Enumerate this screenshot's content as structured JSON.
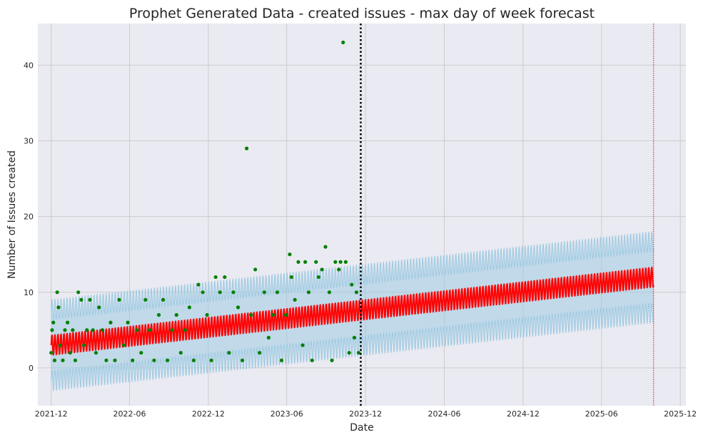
{
  "chart_data": {
    "type": "scatter",
    "title": "Prophet Generated Data - created issues - max day of week forecast",
    "xlabel": "Date",
    "ylabel": "Number of Issues created",
    "xlim": [
      "2021-10-31",
      "2025-12-14"
    ],
    "ylim": [
      -5,
      45.5
    ],
    "x_ticks": [
      "2021-12",
      "2022-06",
      "2022-12",
      "2023-06",
      "2023-12",
      "2024-06",
      "2024-12",
      "2025-06",
      "2025-12"
    ],
    "y_ticks": [
      0,
      10,
      20,
      30,
      40
    ],
    "grid": true,
    "colors": {
      "observed": "#008000",
      "forecast": "#ff0000",
      "interval": "#9ecae1",
      "cutoff": "#000000",
      "horizon_end": "#ff0000",
      "plot_background": "#eaeaf2",
      "grid": "#cccccc"
    },
    "forecast_start": "2021-12-01",
    "forecast_end": "2025-09-30",
    "cutoff_date": "2023-11-20",
    "horizon_end_date": "2025-09-30",
    "trend": {
      "start": {
        "x": "2021-12-01",
        "y": 3.0
      },
      "end": {
        "x": "2025-09-30",
        "y": 12.0
      }
    },
    "weekly_amplitude": 1.4,
    "interval_halfwidth": 4.7,
    "observed_points": [
      {
        "x": "2021-12-01",
        "y": 2
      },
      {
        "x": "2021-12-03",
        "y": 5
      },
      {
        "x": "2021-12-06",
        "y": 6
      },
      {
        "x": "2021-12-09",
        "y": 1
      },
      {
        "x": "2021-12-15",
        "y": 10
      },
      {
        "x": "2021-12-18",
        "y": 8
      },
      {
        "x": "2021-12-22",
        "y": 3
      },
      {
        "x": "2021-12-28",
        "y": 1
      },
      {
        "x": "2022-01-02",
        "y": 5
      },
      {
        "x": "2022-01-08",
        "y": 6
      },
      {
        "x": "2022-01-14",
        "y": 2
      },
      {
        "x": "2022-01-20",
        "y": 5
      },
      {
        "x": "2022-01-26",
        "y": 1
      },
      {
        "x": "2022-02-02",
        "y": 10
      },
      {
        "x": "2022-02-09",
        "y": 9
      },
      {
        "x": "2022-02-15",
        "y": 3
      },
      {
        "x": "2022-02-22",
        "y": 5
      },
      {
        "x": "2022-03-01",
        "y": 9
      },
      {
        "x": "2022-03-08",
        "y": 5
      },
      {
        "x": "2022-03-15",
        "y": 2
      },
      {
        "x": "2022-03-22",
        "y": 8
      },
      {
        "x": "2022-03-30",
        "y": 5
      },
      {
        "x": "2022-04-08",
        "y": 1
      },
      {
        "x": "2022-04-18",
        "y": 6
      },
      {
        "x": "2022-04-28",
        "y": 1
      },
      {
        "x": "2022-05-08",
        "y": 9
      },
      {
        "x": "2022-05-18",
        "y": 3
      },
      {
        "x": "2022-05-28",
        "y": 6
      },
      {
        "x": "2022-06-08",
        "y": 1
      },
      {
        "x": "2022-06-18",
        "y": 5
      },
      {
        "x": "2022-06-28",
        "y": 2
      },
      {
        "x": "2022-07-08",
        "y": 9
      },
      {
        "x": "2022-07-18",
        "y": 5
      },
      {
        "x": "2022-07-28",
        "y": 1
      },
      {
        "x": "2022-08-08",
        "y": 7
      },
      {
        "x": "2022-08-18",
        "y": 9
      },
      {
        "x": "2022-08-28",
        "y": 1
      },
      {
        "x": "2022-09-08",
        "y": 5
      },
      {
        "x": "2022-09-18",
        "y": 7
      },
      {
        "x": "2022-09-28",
        "y": 2
      },
      {
        "x": "2022-10-08",
        "y": 5
      },
      {
        "x": "2022-10-18",
        "y": 8
      },
      {
        "x": "2022-10-28",
        "y": 1
      },
      {
        "x": "2022-11-08",
        "y": 11
      },
      {
        "x": "2022-11-18",
        "y": 10
      },
      {
        "x": "2022-11-28",
        "y": 7
      },
      {
        "x": "2022-12-08",
        "y": 1
      },
      {
        "x": "2022-12-18",
        "y": 12
      },
      {
        "x": "2022-12-28",
        "y": 10
      },
      {
        "x": "2023-01-08",
        "y": 12
      },
      {
        "x": "2023-01-18",
        "y": 2
      },
      {
        "x": "2023-01-28",
        "y": 10
      },
      {
        "x": "2023-02-08",
        "y": 8
      },
      {
        "x": "2023-02-18",
        "y": 1
      },
      {
        "x": "2023-02-28",
        "y": 29
      },
      {
        "x": "2023-03-10",
        "y": 7
      },
      {
        "x": "2023-03-20",
        "y": 13
      },
      {
        "x": "2023-03-30",
        "y": 2
      },
      {
        "x": "2023-04-10",
        "y": 10
      },
      {
        "x": "2023-04-20",
        "y": 4
      },
      {
        "x": "2023-04-30",
        "y": 7
      },
      {
        "x": "2023-05-10",
        "y": 10
      },
      {
        "x": "2023-05-20",
        "y": 1
      },
      {
        "x": "2023-05-30",
        "y": 7
      },
      {
        "x": "2023-06-08",
        "y": 15
      },
      {
        "x": "2023-06-12",
        "y": 12
      },
      {
        "x": "2023-06-20",
        "y": 9
      },
      {
        "x": "2023-06-28",
        "y": 14
      },
      {
        "x": "2023-07-08",
        "y": 3
      },
      {
        "x": "2023-07-14",
        "y": 14
      },
      {
        "x": "2023-07-22",
        "y": 10
      },
      {
        "x": "2023-07-30",
        "y": 1
      },
      {
        "x": "2023-08-08",
        "y": 14
      },
      {
        "x": "2023-08-14",
        "y": 12
      },
      {
        "x": "2023-08-22",
        "y": 13
      },
      {
        "x": "2023-08-30",
        "y": 16
      },
      {
        "x": "2023-09-08",
        "y": 10
      },
      {
        "x": "2023-09-14",
        "y": 1
      },
      {
        "x": "2023-09-22",
        "y": 14
      },
      {
        "x": "2023-09-30",
        "y": 13
      },
      {
        "x": "2023-10-04",
        "y": 14
      },
      {
        "x": "2023-10-10",
        "y": 43
      },
      {
        "x": "2023-10-16",
        "y": 14
      },
      {
        "x": "2023-10-24",
        "y": 2
      },
      {
        "x": "2023-10-30",
        "y": 11
      },
      {
        "x": "2023-11-05",
        "y": 4
      },
      {
        "x": "2023-11-10",
        "y": 10
      },
      {
        "x": "2023-11-15",
        "y": 2
      }
    ]
  }
}
